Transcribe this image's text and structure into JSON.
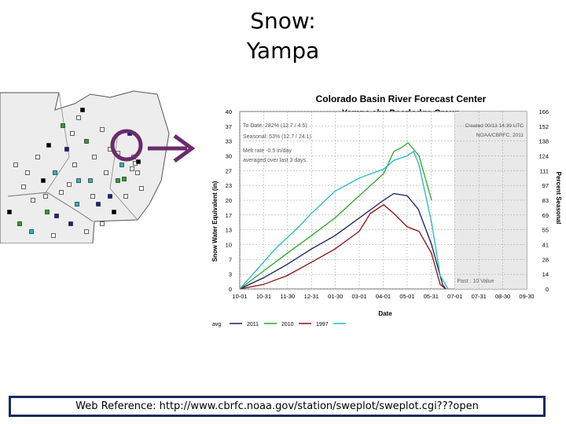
{
  "slide": {
    "title_line1": "Snow:",
    "title_line2": "Yampa",
    "reference": "Web Reference: http://www.cbrfc.noaa.gov/station/sweplot/sweplot.cgi???open"
  },
  "colors": {
    "border": "#1f2b5a",
    "arrow": "#6b2a6b",
    "map_land": "#e6e6e6",
    "series_avg": "#1a1a5c",
    "series_2011": "#2aa52a",
    "series_2010": "#8b1010",
    "series_1997": "#22b8c8"
  },
  "map": {
    "icon": "station-map-thumbnail"
  },
  "chart_data": {
    "type": "line",
    "title": "Colorado Basin River Forecast Center",
    "subtitle": "Yampa abv Deerlodge Group",
    "xlabel": "Date",
    "ylabel": "Snow Water Equivalent (in)",
    "y2label": "Percent Seasonal",
    "x_ticks": [
      "10-01",
      "10-31",
      "11-30",
      "12-31",
      "01-30",
      "03-01",
      "04-01",
      "05-01",
      "05-31",
      "07-01",
      "07-31",
      "08-30",
      "09-30"
    ],
    "y_ticks": [
      0,
      3,
      7,
      10,
      13,
      17,
      20,
      23,
      27,
      30,
      33,
      37,
      40
    ],
    "y2_ticks": [
      0,
      14,
      28,
      41,
      55,
      69,
      83,
      97,
      111,
      124,
      138,
      152,
      166
    ],
    "ylim": [
      0,
      40
    ],
    "grid": true,
    "annotations": {
      "left": [
        "To Date: 282% (12.7 / 4.5)",
        "Seasonal: 53% (12.7 / 24.1)",
        "Melt rate -0.5 in/day",
        "averaged over last 3 days."
      ],
      "right": [
        "Created 00/13 14:39 UTC",
        "NOAA/CBRFC, 2011"
      ],
      "past": "Past : 10 Value"
    },
    "legend": [
      "avg",
      "2011",
      "2010",
      "1997"
    ],
    "series": [
      {
        "name": "avg",
        "x": [
          0,
          30,
          60,
          91,
          121,
          152,
          183,
          196,
          213,
          227,
          244,
          258,
          262
        ],
        "y": [
          0,
          2.5,
          5.5,
          9,
          12,
          16,
          20,
          21.5,
          21,
          18,
          10,
          1,
          0
        ]
      },
      {
        "name": "2011",
        "x": [
          0,
          30,
          60,
          91,
          121,
          152,
          183,
          196,
          207,
          214,
          228,
          244
        ],
        "y": [
          0,
          4,
          8,
          12,
          16,
          21,
          26,
          31,
          32,
          33,
          30,
          20
        ]
      },
      {
        "name": "2010",
        "x": [
          0,
          30,
          60,
          91,
          121,
          152,
          166,
          183,
          196,
          213,
          228,
          244,
          255,
          262
        ],
        "y": [
          0,
          1,
          3,
          6,
          9,
          13,
          17,
          19,
          17,
          14,
          13,
          8,
          1,
          0
        ]
      },
      {
        "name": "1997",
        "x": [
          0,
          15,
          45,
          75,
          91,
          121,
          152,
          183,
          196,
          213,
          221,
          228,
          244,
          255,
          265
        ],
        "y": [
          0,
          3,
          9,
          14,
          17,
          22,
          25,
          27,
          29,
          30,
          31,
          28,
          15,
          3,
          0
        ]
      }
    ]
  }
}
